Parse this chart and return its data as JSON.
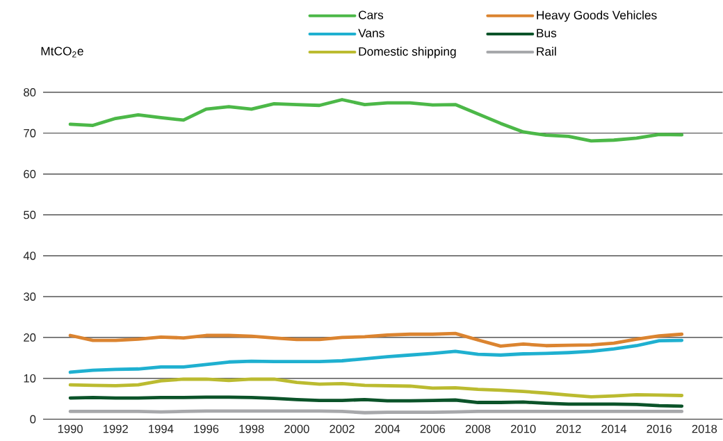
{
  "chart_data": {
    "type": "line",
    "ylabel": "MtCO$_{2}$e",
    "x": [
      1990,
      1991,
      1992,
      1993,
      1994,
      1995,
      1996,
      1997,
      1998,
      1999,
      2000,
      2001,
      2002,
      2003,
      2004,
      2005,
      2006,
      2007,
      2008,
      2009,
      2010,
      2011,
      2012,
      2013,
      2014,
      2015,
      2016,
      2017
    ],
    "series": [
      {
        "name": "Cars",
        "color": "#4cb848",
        "values": [
          72.2,
          71.9,
          73.6,
          74.5,
          73.8,
          73.2,
          75.9,
          76.5,
          75.9,
          77.2,
          77.0,
          76.8,
          78.2,
          77.0,
          77.4,
          77.4,
          76.9,
          77.0,
          74.7,
          72.4,
          70.3,
          69.5,
          69.2,
          68.1,
          68.3,
          68.8,
          69.7,
          69.6
        ]
      },
      {
        "name": "Heavy Goods Vehicles",
        "color": "#db8430",
        "values": [
          20.5,
          19.3,
          19.3,
          19.6,
          20.1,
          19.9,
          20.5,
          20.5,
          20.3,
          19.9,
          19.5,
          19.5,
          20.0,
          20.2,
          20.6,
          20.8,
          20.8,
          21.0,
          19.4,
          17.9,
          18.4,
          18.0,
          18.1,
          18.2,
          18.6,
          19.6,
          20.4,
          20.8
        ]
      },
      {
        "name": "Vans",
        "color": "#1fb0d0",
        "values": [
          11.5,
          12.0,
          12.2,
          12.3,
          12.8,
          12.8,
          13.4,
          14.0,
          14.2,
          14.1,
          14.1,
          14.1,
          14.3,
          14.8,
          15.3,
          15.7,
          16.1,
          16.6,
          15.9,
          15.7,
          16.0,
          16.1,
          16.3,
          16.6,
          17.2,
          18.0,
          19.2,
          19.3
        ]
      },
      {
        "name": "Bus",
        "color": "#0b5329",
        "values": [
          5.2,
          5.3,
          5.2,
          5.2,
          5.3,
          5.3,
          5.4,
          5.4,
          5.3,
          5.1,
          4.8,
          4.6,
          4.6,
          4.8,
          4.5,
          4.5,
          4.6,
          4.7,
          4.1,
          4.1,
          4.2,
          3.9,
          3.7,
          3.7,
          3.7,
          3.6,
          3.3,
          3.2
        ]
      },
      {
        "name": "Domestic shipping",
        "color": "#bbbb30",
        "values": [
          8.4,
          8.3,
          8.2,
          8.4,
          9.4,
          9.8,
          9.8,
          9.5,
          9.8,
          9.8,
          9.0,
          8.6,
          8.7,
          8.3,
          8.2,
          8.1,
          7.6,
          7.7,
          7.3,
          7.1,
          6.8,
          6.4,
          5.9,
          5.5,
          5.7,
          6.0,
          5.9,
          5.8
        ]
      },
      {
        "name": "Rail",
        "color": "#a7a8ab",
        "values": [
          1.9,
          1.9,
          1.9,
          1.9,
          1.8,
          1.9,
          2.0,
          2.0,
          2.0,
          2.0,
          2.0,
          2.0,
          1.9,
          1.6,
          1.7,
          1.7,
          1.7,
          1.8,
          1.9,
          1.9,
          1.9,
          1.9,
          1.9,
          1.9,
          1.9,
          1.9,
          1.9,
          1.9
        ]
      }
    ],
    "xlim": [
      1988.8,
      2018.8
    ],
    "ylim": [
      0,
      80
    ],
    "xticks": [
      1990,
      1992,
      1994,
      1996,
      1998,
      2000,
      2002,
      2004,
      2006,
      2008,
      2010,
      2012,
      2014,
      2016,
      2018
    ],
    "yticks": [
      0,
      10,
      20,
      30,
      40,
      50,
      60,
      70,
      80
    ],
    "grid": "y",
    "legend": "top right",
    "marker": "none",
    "line_style": "solid"
  }
}
